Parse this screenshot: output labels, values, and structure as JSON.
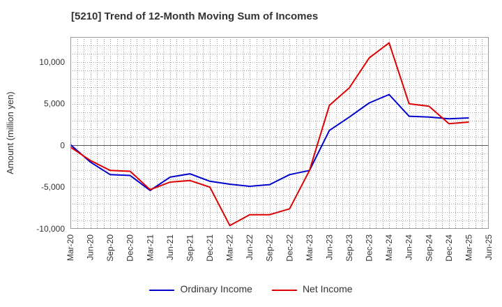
{
  "chart_data": {
    "type": "line",
    "title": "[5210]  Trend of 12-Month Moving Sum of Incomes",
    "xlabel": "",
    "ylabel": "Amount (million yen)",
    "ylim": [
      -10000,
      13000
    ],
    "yticks": [
      -10000,
      -5000,
      0,
      5000,
      10000
    ],
    "ytick_labels": [
      "-10,000",
      "-5,000",
      "0",
      "5,000",
      "10,000"
    ],
    "x_ticks": [
      "Mar-20",
      "Jun-20",
      "Sep-20",
      "Dec-20",
      "Mar-21",
      "Jun-21",
      "Sep-21",
      "Dec-21",
      "Mar-22",
      "Jun-22",
      "Sep-22",
      "Dec-22",
      "Mar-23",
      "Jun-23",
      "Sep-23",
      "Dec-23",
      "Mar-24",
      "Jun-24",
      "Sep-24",
      "Dec-24",
      "Mar-25",
      "Jun-25"
    ],
    "grid": true,
    "legend_position": "bottom",
    "series": [
      {
        "name": "Ordinary Income",
        "color": "#0000cc",
        "values": [
          100,
          -2000,
          -3500,
          -3600,
          -5400,
          -3800,
          -3400,
          -4300,
          -4650,
          -4900,
          -4700,
          -3500,
          -3000,
          1800,
          3400,
          5100,
          6100,
          3500,
          3400,
          3200,
          3300
        ]
      },
      {
        "name": "Net Income",
        "color": "#dd0000",
        "values": [
          -200,
          -1800,
          -3000,
          -3100,
          -5300,
          -4400,
          -4200,
          -5000,
          -9600,
          -8300,
          -8300,
          -7600,
          -3000,
          4800,
          6900,
          10500,
          12300,
          5000,
          4700,
          2600,
          2800
        ]
      }
    ]
  }
}
